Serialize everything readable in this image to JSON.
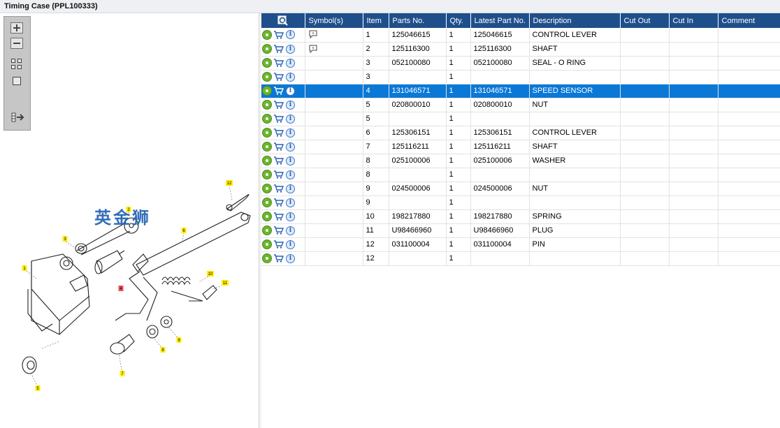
{
  "window": {
    "title": "Timing Case (PPL100333)"
  },
  "toolbox": {
    "zoom_in": "zoom-in",
    "zoom_out": "zoom-out",
    "fit_all": "fit-all",
    "fit_window": "fit-window",
    "list_view": "list-view"
  },
  "diagram": {
    "callouts": [
      "1",
      "2",
      "3",
      "4",
      "5",
      "6",
      "7",
      "8",
      "9",
      "10",
      "11",
      "12"
    ],
    "highlighted_callout": "4"
  },
  "grid": {
    "columns": {
      "actions": "",
      "symbols": "Symbol(s)",
      "item": "Item",
      "parts_no": "Parts No.",
      "qty": "Qty.",
      "latest_part_no": "Latest Part No.",
      "description": "Description",
      "cut_out": "Cut Out",
      "cut_in": "Cut In",
      "comment": "Comment"
    },
    "rows": [
      {
        "item": "1",
        "parts_no": "125046615",
        "qty": "1",
        "latest": "125046615",
        "desc": "CONTROL LEVER",
        "symbol": true
      },
      {
        "item": "2",
        "parts_no": "125116300",
        "qty": "1",
        "latest": "125116300",
        "desc": "SHAFT",
        "symbol": true
      },
      {
        "item": "3",
        "parts_no": "052100080",
        "qty": "1",
        "latest": "052100080",
        "desc": "SEAL - O RING",
        "symbol": false
      },
      {
        "item": "3",
        "parts_no": "",
        "qty": "1",
        "latest": "",
        "desc": "",
        "symbol": false
      },
      {
        "item": "4",
        "parts_no": "131046571",
        "qty": "1",
        "latest": "131046571",
        "desc": "SPEED SENSOR",
        "symbol": false,
        "selected": true
      },
      {
        "item": "5",
        "parts_no": "020800010",
        "qty": "1",
        "latest": "020800010",
        "desc": "NUT",
        "symbol": false
      },
      {
        "item": "5",
        "parts_no": "",
        "qty": "1",
        "latest": "",
        "desc": "",
        "symbol": false
      },
      {
        "item": "6",
        "parts_no": "125306151",
        "qty": "1",
        "latest": "125306151",
        "desc": "CONTROL LEVER",
        "symbol": false
      },
      {
        "item": "7",
        "parts_no": "125116211",
        "qty": "1",
        "latest": "125116211",
        "desc": "SHAFT",
        "symbol": false
      },
      {
        "item": "8",
        "parts_no": "025100006",
        "qty": "1",
        "latest": "025100006",
        "desc": "WASHER",
        "symbol": false
      },
      {
        "item": "8",
        "parts_no": "",
        "qty": "1",
        "latest": "",
        "desc": "",
        "symbol": false
      },
      {
        "item": "9",
        "parts_no": "024500006",
        "qty": "1",
        "latest": "024500006",
        "desc": "NUT",
        "symbol": false
      },
      {
        "item": "9",
        "parts_no": "",
        "qty": "1",
        "latest": "",
        "desc": "",
        "symbol": false
      },
      {
        "item": "10",
        "parts_no": "198217880",
        "qty": "1",
        "latest": "198217880",
        "desc": "SPRING",
        "symbol": false
      },
      {
        "item": "11",
        "parts_no": "U98466960",
        "qty": "1",
        "latest": "U98466960",
        "desc": "PLUG",
        "symbol": false
      },
      {
        "item": "12",
        "parts_no": "031100004",
        "qty": "1",
        "latest": "031100004",
        "desc": "PIN",
        "symbol": false
      },
      {
        "item": "12",
        "parts_no": "",
        "qty": "1",
        "latest": "",
        "desc": "",
        "symbol": false
      }
    ]
  },
  "watermark": "英金狮",
  "colors": {
    "header_bg": "#1f4f8b",
    "selected_row": "#0a78d7",
    "callout_yellow": "#ffee00",
    "callout_selected": "#f05050"
  }
}
